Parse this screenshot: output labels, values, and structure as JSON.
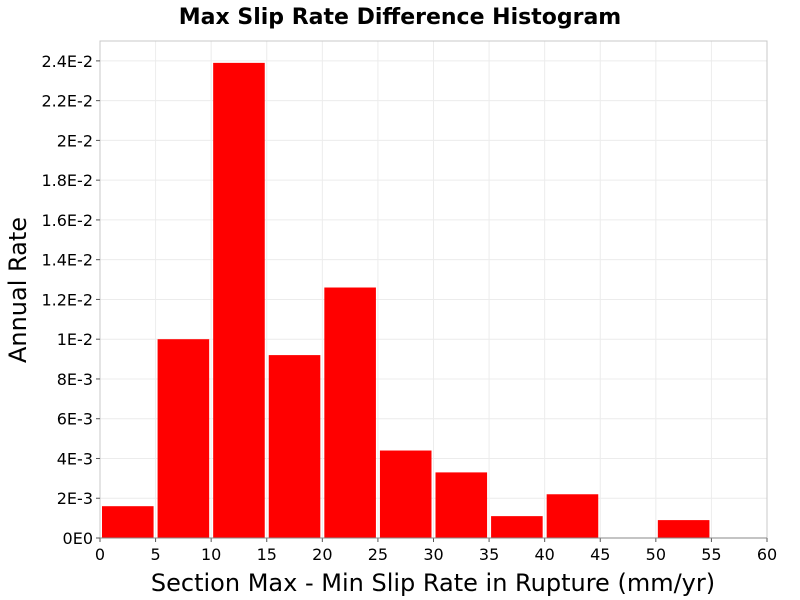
{
  "chart_data": {
    "type": "bar",
    "title": "Max Slip Rate Difference Histogram",
    "xlabel": "Section Max - Min Slip Rate in Rupture (mm/yr)",
    "ylabel": "Annual Rate",
    "xlim": [
      0,
      60
    ],
    "ylim": [
      0,
      0.025
    ],
    "grid": true,
    "bar_color": "#ff0000",
    "x_ticks": [
      {
        "value": 0,
        "label": "0"
      },
      {
        "value": 5,
        "label": "5"
      },
      {
        "value": 10,
        "label": "10"
      },
      {
        "value": 15,
        "label": "15"
      },
      {
        "value": 20,
        "label": "20"
      },
      {
        "value": 25,
        "label": "25"
      },
      {
        "value": 30,
        "label": "30"
      },
      {
        "value": 35,
        "label": "35"
      },
      {
        "value": 40,
        "label": "40"
      },
      {
        "value": 45,
        "label": "45"
      },
      {
        "value": 50,
        "label": "50"
      },
      {
        "value": 55,
        "label": "55"
      },
      {
        "value": 60,
        "label": "60"
      }
    ],
    "y_ticks": [
      {
        "value": 0,
        "label": "0E0"
      },
      {
        "value": 0.002,
        "label": "2E-3"
      },
      {
        "value": 0.004,
        "label": "4E-3"
      },
      {
        "value": 0.006,
        "label": "6E-3"
      },
      {
        "value": 0.008,
        "label": "8E-3"
      },
      {
        "value": 0.01,
        "label": "1E-2"
      },
      {
        "value": 0.012,
        "label": "1.2E-2"
      },
      {
        "value": 0.014,
        "label": "1.4E-2"
      },
      {
        "value": 0.016,
        "label": "1.6E-2"
      },
      {
        "value": 0.018,
        "label": "1.8E-2"
      },
      {
        "value": 0.02,
        "label": "2E-2"
      },
      {
        "value": 0.022,
        "label": "2.2E-2"
      },
      {
        "value": 0.024,
        "label": "2.4E-2"
      }
    ],
    "bins": [
      {
        "x0": 0,
        "x1": 5,
        "value": 0.0016
      },
      {
        "x0": 5,
        "x1": 10,
        "value": 0.01
      },
      {
        "x0": 10,
        "x1": 15,
        "value": 0.0239
      },
      {
        "x0": 15,
        "x1": 20,
        "value": 0.0092
      },
      {
        "x0": 20,
        "x1": 25,
        "value": 0.0126
      },
      {
        "x0": 25,
        "x1": 30,
        "value": 0.0044
      },
      {
        "x0": 30,
        "x1": 35,
        "value": 0.0033
      },
      {
        "x0": 35,
        "x1": 40,
        "value": 0.0011
      },
      {
        "x0": 40,
        "x1": 45,
        "value": 0.0022
      },
      {
        "x0": 45,
        "x1": 50,
        "value": 0
      },
      {
        "x0": 50,
        "x1": 55,
        "value": 0.0009
      },
      {
        "x0": 55,
        "x1": 60,
        "value": 0
      }
    ]
  }
}
